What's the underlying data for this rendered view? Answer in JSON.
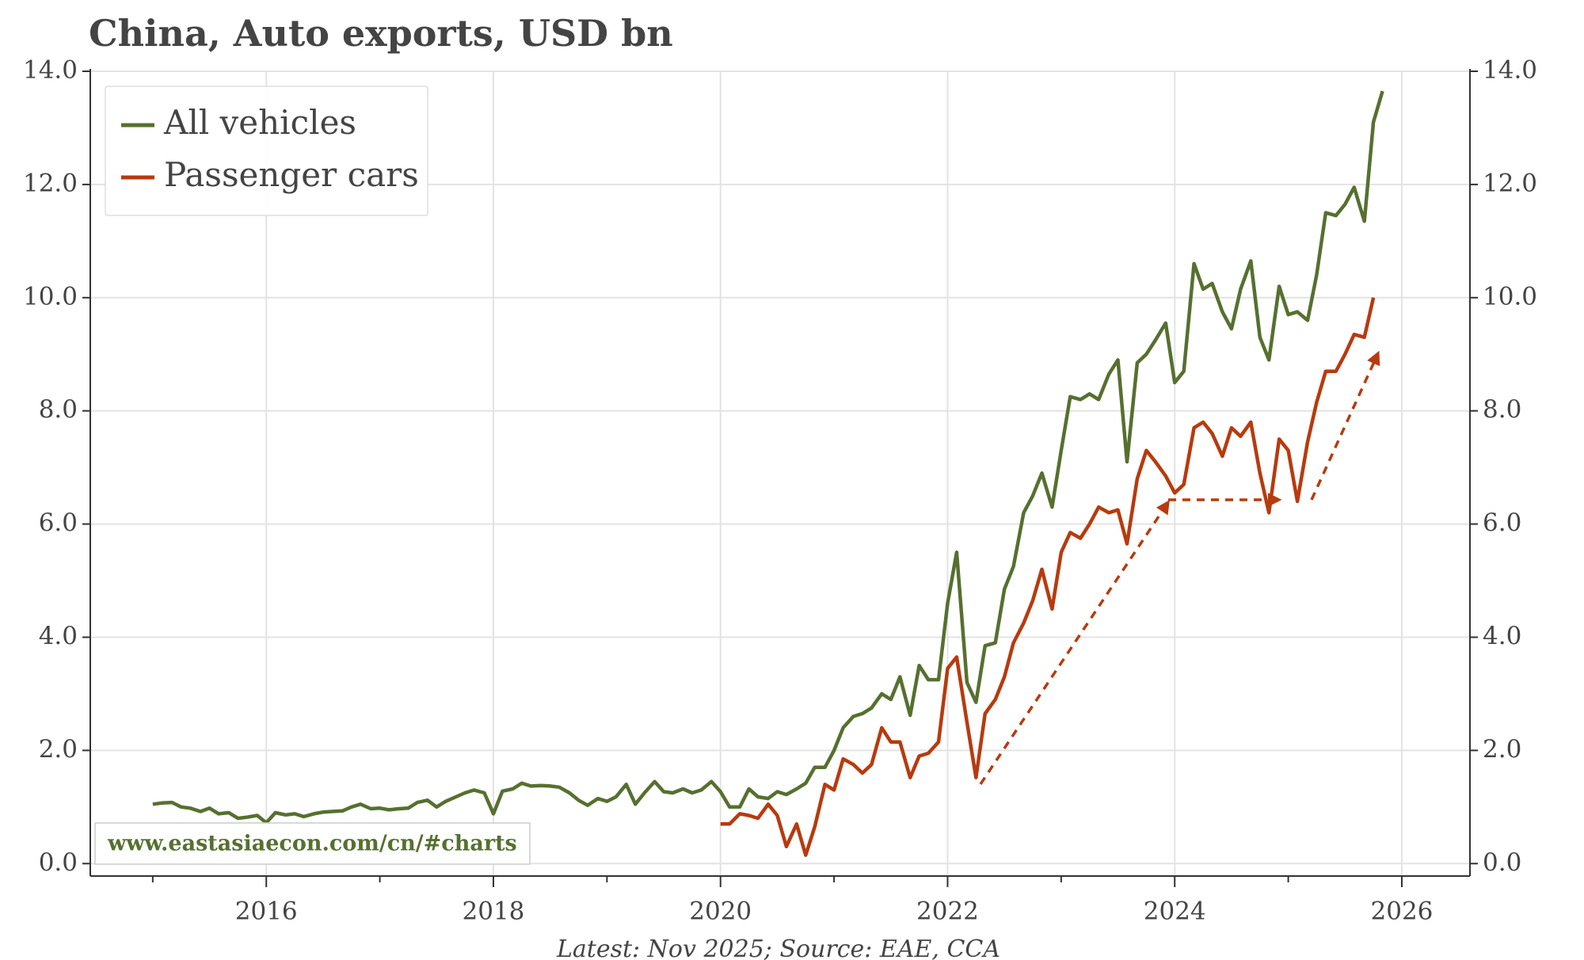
{
  "chart_data": {
    "type": "line",
    "title": "China, Auto exports, USD bn",
    "watermark": "www.eastasiaecon.com/cn/#charts",
    "source": "Latest: Nov 2025; Source: EAE, CCA",
    "x": [
      2015.0,
      2015.08,
      2015.17,
      2015.25,
      2015.33,
      2015.42,
      2015.5,
      2015.58,
      2015.67,
      2015.75,
      2015.83,
      2015.92,
      2016.0,
      2016.08,
      2016.17,
      2016.25,
      2016.33,
      2016.42,
      2016.5,
      2016.58,
      2016.67,
      2016.75,
      2016.83,
      2016.92,
      2017.0,
      2017.08,
      2017.17,
      2017.25,
      2017.33,
      2017.42,
      2017.5,
      2017.58,
      2017.67,
      2017.75,
      2017.83,
      2017.92,
      2018.0,
      2018.08,
      2018.17,
      2018.25,
      2018.33,
      2018.42,
      2018.5,
      2018.58,
      2018.67,
      2018.75,
      2018.83,
      2018.92,
      2019.0,
      2019.08,
      2019.17,
      2019.25,
      2019.33,
      2019.42,
      2019.5,
      2019.58,
      2019.67,
      2019.75,
      2019.83,
      2019.92,
      2020.0,
      2020.08,
      2020.17,
      2020.25,
      2020.33,
      2020.42,
      2020.5,
      2020.58,
      2020.67,
      2020.75,
      2020.83,
      2020.92,
      2021.0,
      2021.08,
      2021.17,
      2021.25,
      2021.33,
      2021.42,
      2021.5,
      2021.58,
      2021.67,
      2021.75,
      2021.83,
      2021.92,
      2022.0,
      2022.08,
      2022.17,
      2022.25,
      2022.33,
      2022.42,
      2022.5,
      2022.58,
      2022.67,
      2022.75,
      2022.83,
      2022.92,
      2023.0,
      2023.08,
      2023.17,
      2023.25,
      2023.33,
      2023.42,
      2023.5,
      2023.58,
      2023.67,
      2023.75,
      2023.83,
      2023.92,
      2024.0,
      2024.08,
      2024.17,
      2024.25,
      2024.33,
      2024.42,
      2024.5,
      2024.58,
      2024.67,
      2024.75,
      2024.83,
      2024.92,
      2025.0,
      2025.08,
      2025.17,
      2025.25,
      2025.33,
      2025.42,
      2025.5,
      2025.58,
      2025.67,
      2025.75,
      2025.83
    ],
    "series": [
      {
        "name": "All vehicles",
        "color": "#56702f",
        "values": [
          1.05,
          1.07,
          1.08,
          1.0,
          0.98,
          0.92,
          0.98,
          0.88,
          0.9,
          0.8,
          0.82,
          0.85,
          0.72,
          0.9,
          0.86,
          0.88,
          0.83,
          0.88,
          0.91,
          0.92,
          0.93,
          1.0,
          1.05,
          0.97,
          0.98,
          0.95,
          0.97,
          0.98,
          1.08,
          1.12,
          1.0,
          1.1,
          1.18,
          1.25,
          1.3,
          1.25,
          0.88,
          1.28,
          1.32,
          1.42,
          1.37,
          1.38,
          1.37,
          1.35,
          1.25,
          1.12,
          1.03,
          1.15,
          1.1,
          1.18,
          1.4,
          1.05,
          1.25,
          1.45,
          1.27,
          1.25,
          1.32,
          1.25,
          1.3,
          1.45,
          1.27,
          1.0,
          1.0,
          1.32,
          1.18,
          1.15,
          1.27,
          1.22,
          1.32,
          1.42,
          1.7,
          1.7,
          2.0,
          2.4,
          2.6,
          2.65,
          2.75,
          3.0,
          2.9,
          3.3,
          2.62,
          3.5,
          3.25,
          3.25,
          4.6,
          5.5,
          3.2,
          2.85,
          3.85,
          3.9,
          4.85,
          5.25,
          6.2,
          6.5,
          6.9,
          6.3,
          7.3,
          8.25,
          8.2,
          8.3,
          8.2,
          8.65,
          8.9,
          7.1,
          8.85,
          9.0,
          9.25,
          9.55,
          8.5,
          8.7,
          10.6,
          10.15,
          10.25,
          9.75,
          9.45,
          10.15,
          10.65,
          9.3,
          8.9,
          10.2,
          9.7,
          9.75,
          9.6,
          10.4,
          11.5,
          11.45,
          11.65,
          11.95,
          11.35,
          13.1,
          13.65
        ]
      },
      {
        "name": "Passenger cars",
        "color": "#b83a0e",
        "values": [
          null,
          null,
          null,
          null,
          null,
          null,
          null,
          null,
          null,
          null,
          null,
          null,
          null,
          null,
          null,
          null,
          null,
          null,
          null,
          null,
          null,
          null,
          null,
          null,
          null,
          null,
          null,
          null,
          null,
          null,
          null,
          null,
          null,
          null,
          null,
          null,
          null,
          null,
          null,
          null,
          null,
          null,
          null,
          null,
          null,
          null,
          null,
          null,
          null,
          null,
          null,
          null,
          null,
          null,
          null,
          null,
          null,
          null,
          null,
          null,
          0.7,
          0.7,
          0.88,
          0.85,
          0.8,
          1.05,
          0.85,
          0.3,
          0.7,
          0.15,
          0.65,
          1.4,
          1.3,
          1.85,
          1.75,
          1.6,
          1.75,
          2.4,
          2.15,
          2.15,
          1.52,
          1.9,
          1.95,
          2.15,
          3.45,
          3.65,
          2.5,
          1.52,
          2.65,
          2.9,
          3.3,
          3.9,
          4.25,
          4.65,
          5.2,
          4.5,
          5.5,
          5.85,
          5.75,
          6.0,
          6.3,
          6.2,
          6.25,
          5.65,
          6.8,
          7.3,
          7.1,
          6.85,
          6.55,
          6.7,
          7.7,
          7.8,
          7.6,
          7.2,
          7.7,
          7.55,
          7.8,
          6.9,
          6.2,
          7.5,
          7.3,
          6.4,
          7.45,
          8.15,
          8.7,
          8.7,
          9.0,
          9.35,
          9.3,
          10.0,
          null
        ]
      }
    ],
    "xlim": [
      2014.45,
      2026.6
    ],
    "xticks": [
      2016,
      2018,
      2020,
      2022,
      2024,
      2026
    ],
    "xminorticks": [
      2015,
      2017,
      2019,
      2021,
      2023,
      2025
    ],
    "ylim": [
      -0.22,
      14.0
    ],
    "yticks": [
      {
        "value": 0,
        "label": "0.0"
      },
      {
        "value": 2,
        "label": "2.0"
      },
      {
        "value": 4,
        "label": "4.0"
      },
      {
        "value": 6,
        "label": "6.0"
      },
      {
        "value": 8,
        "label": "8.0"
      },
      {
        "value": 10,
        "label": "10.0"
      },
      {
        "value": 12,
        "label": "12.0"
      },
      {
        "value": 14,
        "label": "14.0"
      }
    ],
    "grid": true,
    "legend": "upper left"
  }
}
